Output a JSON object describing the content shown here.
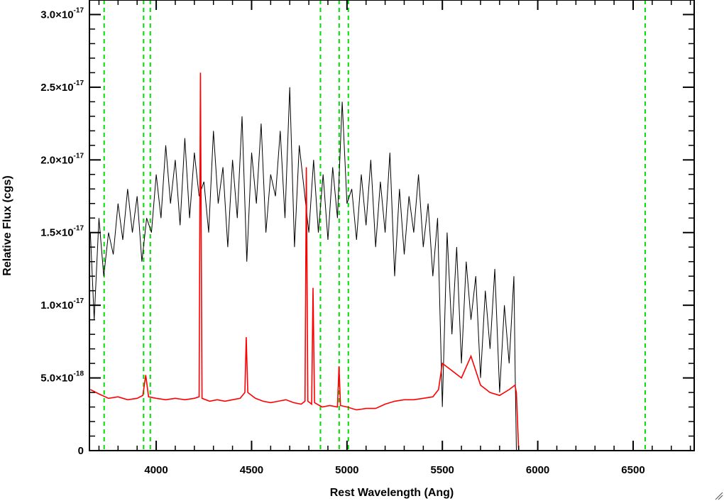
{
  "chart_data": {
    "type": "line",
    "title": "",
    "xlabel": "Rest Wavelength (Ang)",
    "ylabel": "Relative Flux (cgs)",
    "xlim": [
      3650,
      6820
    ],
    "ylim": [
      0,
      3.1e-17
    ],
    "grid": false,
    "legend": "none",
    "x_ticks": [
      {
        "value": 4000,
        "label": "4000"
      },
      {
        "value": 4500,
        "label": "4500"
      },
      {
        "value": 5000,
        "label": "5000"
      },
      {
        "value": 5500,
        "label": "5500"
      },
      {
        "value": 6000,
        "label": "6000"
      },
      {
        "value": 6500,
        "label": "6500"
      }
    ],
    "y_ticks": [
      {
        "value": 0,
        "mantissa": "0",
        "exponent": ""
      },
      {
        "value": 5e-18,
        "mantissa": "5.0×10",
        "exponent": "-18"
      },
      {
        "value": 1e-17,
        "mantissa": "1.0×10",
        "exponent": "-17"
      },
      {
        "value": 1.5e-17,
        "mantissa": "1.5×10",
        "exponent": "-17"
      },
      {
        "value": 2e-17,
        "mantissa": "2.0×10",
        "exponent": "-17"
      },
      {
        "value": 2.5e-17,
        "mantissa": "2.5×10",
        "exponent": "-17"
      },
      {
        "value": 3e-17,
        "mantissa": "3.0×10",
        "exponent": "-17"
      }
    ],
    "reference_lines_x": [
      3727,
      3934,
      3969,
      4861,
      4959,
      5007,
      6563
    ],
    "series": [
      {
        "color": "#000000",
        "x": [
          3655,
          3675,
          3700,
          3725,
          3750,
          3775,
          3800,
          3825,
          3850,
          3875,
          3900,
          3925,
          3950,
          3975,
          4000,
          4025,
          4050,
          4075,
          4100,
          4125,
          4150,
          4175,
          4200,
          4225,
          4250,
          4275,
          4300,
          4325,
          4350,
          4375,
          4400,
          4425,
          4450,
          4475,
          4500,
          4525,
          4550,
          4575,
          4600,
          4625,
          4650,
          4675,
          4700,
          4725,
          4750,
          4775,
          4800,
          4825,
          4850,
          4875,
          4900,
          4925,
          4950,
          4975,
          5000,
          5025,
          5050,
          5075,
          5100,
          5125,
          5150,
          5175,
          5200,
          5225,
          5250,
          5275,
          5300,
          5325,
          5350,
          5375,
          5400,
          5425,
          5450,
          5475,
          5500,
          5525,
          5550,
          5575,
          5600,
          5625,
          5650,
          5675,
          5700,
          5725,
          5750,
          5775,
          5800,
          5825,
          5850,
          5875,
          5882,
          5888
        ],
        "values": [
          1.5e-17,
          9e-18,
          1.6e-17,
          1.2e-17,
          1.5e-17,
          1.35e-17,
          1.7e-17,
          1.45e-17,
          1.8e-17,
          1.5e-17,
          1.75e-17,
          1.3e-17,
          1.6e-17,
          1.5e-17,
          1.9e-17,
          1.6e-17,
          2.1e-17,
          1.7e-17,
          2e-17,
          1.55e-17,
          2.15e-17,
          1.6e-17,
          2.05e-17,
          1.75e-17,
          1.85e-17,
          1.5e-17,
          2.2e-17,
          1.7e-17,
          1.95e-17,
          1.4e-17,
          2e-17,
          1.6e-17,
          2.3e-17,
          1.3e-17,
          2.05e-17,
          1.7e-17,
          2.25e-17,
          1.5e-17,
          1.9e-17,
          1.75e-17,
          2.2e-17,
          1.6e-17,
          2.5e-17,
          1.4e-17,
          2.1e-17,
          1.8e-17,
          1.5e-17,
          2e-17,
          1.5e-17,
          1.9e-17,
          1.45e-17,
          1.95e-17,
          1.6e-17,
          2.4e-17,
          1.7e-17,
          1.8e-17,
          1.45e-17,
          1.9e-17,
          1.55e-17,
          2e-17,
          1.4e-17,
          1.85e-17,
          1.5e-17,
          2.05e-17,
          1.2e-17,
          1.8e-17,
          1.35e-17,
          1.75e-17,
          1.5e-17,
          1.9e-17,
          1.4e-17,
          1.7e-17,
          1.2e-17,
          1.6e-17,
          3e-18,
          1.5e-17,
          8e-18,
          1.4e-17,
          6e-18,
          1.3e-17,
          9e-18,
          1.2e-17,
          5e-18,
          1.1e-17,
          7e-18,
          1.25e-17,
          4e-18,
          1e-17,
          6e-18,
          1.2e-17,
          5e-18,
          0.0
        ]
      },
      {
        "color": "#ff0000",
        "x": [
          3655,
          3700,
          3750,
          3800,
          3850,
          3900,
          3930,
          3945,
          3960,
          4000,
          4050,
          4100,
          4150,
          4200,
          4225,
          4232,
          4240,
          4280,
          4320,
          4360,
          4400,
          4440,
          4465,
          4472,
          4480,
          4520,
          4560,
          4600,
          4640,
          4680,
          4720,
          4760,
          4780,
          4787,
          4795,
          4815,
          4822,
          4830,
          4870,
          4910,
          4950,
          4958,
          4966,
          5000,
          5050,
          5100,
          5150,
          5200,
          5250,
          5300,
          5350,
          5400,
          5450,
          5480,
          5500,
          5550,
          5600,
          5650,
          5700,
          5750,
          5800,
          5850,
          5880,
          5888,
          5900,
          6200,
          6500,
          6810
        ],
        "values": [
          4.2e-18,
          3.9e-18,
          3.6e-18,
          3.7e-18,
          3.5e-18,
          3.6e-18,
          3.8e-18,
          5.2e-18,
          3.7e-18,
          3.6e-18,
          3.5e-18,
          3.6e-18,
          3.5e-18,
          3.6e-18,
          3.7e-18,
          2.6e-17,
          3.6e-18,
          3.4e-18,
          3.5e-18,
          3.4e-18,
          3.5e-18,
          3.6e-18,
          4e-18,
          7.8e-18,
          4e-18,
          3.6e-18,
          3.4e-18,
          3.3e-18,
          3.4e-18,
          3.5e-18,
          3.3e-18,
          3.2e-18,
          3.4e-18,
          1.95e-17,
          3.4e-18,
          3.2e-18,
          1.12e-17,
          3.3e-18,
          3e-18,
          3.1e-18,
          3e-18,
          5.8e-18,
          3.1e-18,
          3e-18,
          2.8e-18,
          2.9e-18,
          2.9e-18,
          3.2e-18,
          3.4e-18,
          3.5e-18,
          3.5e-18,
          3.6e-18,
          3.7e-18,
          4.2e-18,
          6e-18,
          5.5e-18,
          5e-18,
          6.5e-18,
          4.5e-18,
          4e-18,
          3.8e-18,
          4.2e-18,
          4.5e-18,
          4e-18,
          0.0,
          0.0,
          0.0,
          0.0
        ]
      }
    ]
  }
}
